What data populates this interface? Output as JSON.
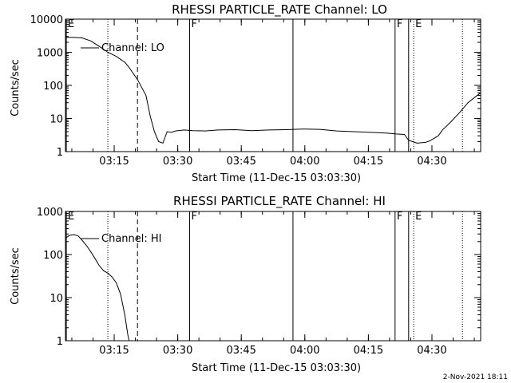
{
  "chart_data": [
    {
      "type": "line",
      "title": "RHESSI PARTICLE_RATE Channel: LO",
      "xlabel": "Start Time (11-Dec-15 03:03:30)",
      "ylabel": "Counts/sec",
      "yscale": "log",
      "ylim": [
        1,
        10000
      ],
      "xlim_minutes": [
        0,
        98
      ],
      "x_ticks": [
        "03:15",
        "03:30",
        "03:45",
        "04:00",
        "04:15",
        "04:30"
      ],
      "y_ticks": [
        "1",
        "10",
        "100",
        "1000",
        "10000"
      ],
      "legend": "Channel: LO",
      "series": [
        {
          "x": [
            0,
            2,
            4,
            6,
            8,
            10,
            12,
            14,
            15,
            17,
            19,
            20,
            21,
            22,
            23,
            24,
            25,
            26,
            28,
            30,
            33,
            36,
            40,
            44,
            48,
            52,
            56,
            60,
            64,
            68,
            72,
            76,
            78,
            80,
            81,
            83,
            85,
            86,
            88,
            89,
            91,
            93,
            95,
            98
          ],
          "y": [
            2800,
            2800,
            2700,
            2200,
            1500,
            1000,
            750,
            500,
            350,
            150,
            50,
            12,
            4,
            2,
            1.8,
            4,
            3.8,
            4.2,
            4.5,
            4.3,
            4.2,
            4.5,
            4.6,
            4.3,
            4.5,
            4.6,
            4.8,
            4.7,
            4.2,
            4,
            3.8,
            3.6,
            3.4,
            3.3,
            2.2,
            1.8,
            1.9,
            2.1,
            3,
            4.5,
            8,
            15,
            30,
            60
          ]
        }
      ],
      "annotations": [
        {
          "label": "E",
          "x": 0.2,
          "style": "solid"
        },
        {
          "label": "",
          "x": 10,
          "style": "dotted"
        },
        {
          "label": "",
          "x": 17,
          "style": "dashed"
        },
        {
          "label": "F",
          "x": 29.3,
          "style": "solid"
        },
        {
          "label": "",
          "x": 53.7,
          "style": "solid"
        },
        {
          "label": "F",
          "x": 77.8,
          "style": "solid"
        },
        {
          "label": "",
          "x": 81,
          "style": "solid"
        },
        {
          "label": "E",
          "x": 82.2,
          "style": "dotted"
        },
        {
          "label": "",
          "x": 93.7,
          "style": "dotted"
        }
      ]
    },
    {
      "type": "line",
      "title": "RHESSI PARTICLE_RATE Channel: HI",
      "xlabel": "Start Time (11-Dec-15 03:03:30)",
      "ylabel": "Counts/sec",
      "yscale": "log",
      "ylim": [
        1,
        1000
      ],
      "xlim_minutes": [
        0,
        98
      ],
      "x_ticks": [
        "03:15",
        "03:30",
        "03:45",
        "04:00",
        "04:15",
        "04:30"
      ],
      "y_ticks": [
        "1",
        "10",
        "100",
        "1000"
      ],
      "legend": "Channel: HI",
      "series": [
        {
          "x": [
            0,
            1,
            2,
            3,
            4,
            5,
            6,
            7,
            8,
            9,
            10,
            11,
            12,
            13,
            14,
            14.7,
            15
          ],
          "y": [
            240,
            280,
            290,
            270,
            210,
            160,
            115,
            80,
            55,
            42,
            37,
            30,
            22,
            12,
            4,
            1.4,
            1
          ]
        }
      ],
      "annotations": [
        {
          "label": "E",
          "x": 0.2,
          "style": "solid"
        },
        {
          "label": "",
          "x": 10,
          "style": "dotted"
        },
        {
          "label": "",
          "x": 17,
          "style": "dashed"
        },
        {
          "label": "F",
          "x": 29.3,
          "style": "solid"
        },
        {
          "label": "",
          "x": 53.7,
          "style": "solid"
        },
        {
          "label": "F",
          "x": 77.8,
          "style": "solid"
        },
        {
          "label": "",
          "x": 81,
          "style": "solid"
        },
        {
          "label": "E",
          "x": 82.2,
          "style": "dotted"
        },
        {
          "label": "",
          "x": 93.7,
          "style": "dotted"
        }
      ]
    }
  ],
  "footer": {
    "timestamp": "2-Nov-2021 18:11"
  }
}
